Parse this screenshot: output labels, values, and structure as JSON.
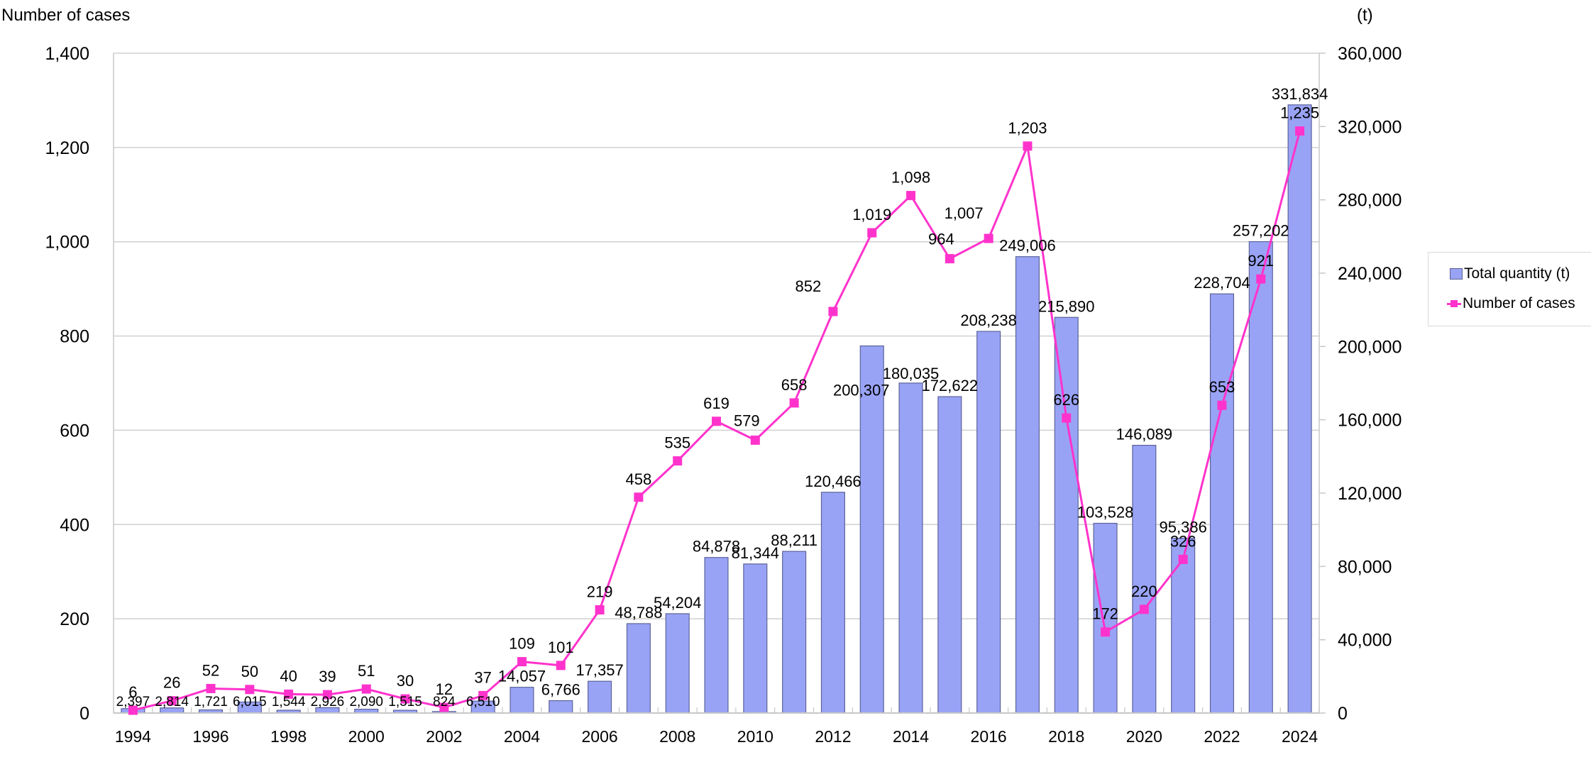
{
  "chart_data": {
    "type": "bar+line",
    "title": "",
    "left_axis_title": "Number of cases",
    "right_axis_title": "(t)",
    "xlabel": "",
    "categories": [
      "1994",
      "1995",
      "1996",
      "1997",
      "1998",
      "1999",
      "2000",
      "2001",
      "2002",
      "2003",
      "2004",
      "2005",
      "2006",
      "2007",
      "2008",
      "2009",
      "2010",
      "2011",
      "2012",
      "2013",
      "2014",
      "2015",
      "2016",
      "2017",
      "2018",
      "2019",
      "2020",
      "2021",
      "2022",
      "2023",
      "2024"
    ],
    "x_tick_labels": [
      "1994",
      "1996",
      "1998",
      "2000",
      "2002",
      "2004",
      "2006",
      "2008",
      "2010",
      "2012",
      "2014",
      "2016",
      "2018",
      "2020",
      "2022",
      "2024"
    ],
    "series": [
      {
        "name": "Total quantity (t)",
        "type": "bar",
        "axis": "right",
        "color": "#99a3f6",
        "values": [
          2397,
          2814,
          1721,
          6015,
          1544,
          2926,
          2090,
          1515,
          824,
          6510,
          14057,
          6766,
          17357,
          48788,
          54204,
          84878,
          81344,
          88211,
          120466,
          200307,
          180035,
          172622,
          208238,
          249006,
          215890,
          103528,
          146089,
          95386,
          228704,
          257202,
          331834
        ],
        "labels": [
          "2,397",
          "2,814",
          "1,721",
          "6,015",
          "1,544",
          "2,926",
          "2,090",
          "1,515",
          "824",
          "6,510",
          "14,057",
          "6,766",
          "17,357",
          "48,788",
          "54,204",
          "84,878",
          "81,344",
          "88,211",
          "120,466",
          "200,307",
          "180,035",
          "172,622",
          "208,238",
          "249,006",
          "215,890",
          "103,528",
          "146,089",
          "95,386",
          "228,704",
          "257,202",
          "331,834"
        ]
      },
      {
        "name": "Number of cases",
        "type": "line",
        "axis": "left",
        "color": "#ff33cc",
        "marker": "square",
        "values": [
          6,
          26,
          52,
          50,
          40,
          39,
          51,
          30,
          12,
          37,
          109,
          101,
          219,
          458,
          535,
          619,
          579,
          658,
          852,
          1019,
          1098,
          964,
          1007,
          1203,
          626,
          172,
          220,
          326,
          653,
          921,
          1235
        ],
        "labels": [
          "6",
          "26",
          "52",
          "50",
          "40",
          "39",
          "51",
          "30",
          "12",
          "37",
          "109",
          "101",
          "219",
          "458",
          "535",
          "619",
          "579",
          "658",
          "852",
          "1,019",
          "1,098",
          "964",
          "1,007",
          "1,203",
          "626",
          "172",
          "220",
          "326",
          "653",
          "921",
          "1,235"
        ]
      }
    ],
    "left_axis": {
      "range": [
        0,
        1400
      ],
      "ticks": [
        0,
        200,
        400,
        600,
        800,
        1000,
        1200,
        1400
      ],
      "tick_labels": [
        "0",
        "200",
        "400",
        "600",
        "800",
        "1,000",
        "1,200",
        "1,400"
      ]
    },
    "right_axis": {
      "range": [
        0,
        360000
      ],
      "ticks": [
        0,
        40000,
        80000,
        120000,
        160000,
        200000,
        240000,
        280000,
        320000,
        360000
      ],
      "tick_labels": [
        "0",
        "40,000",
        "80,000",
        "120,000",
        "160,000",
        "200,000",
        "240,000",
        "280,000",
        "320,000",
        "360,000"
      ]
    },
    "grid": true,
    "legend": {
      "position": "right",
      "entries": [
        "Total quantity (t)",
        "Number of cases"
      ]
    }
  }
}
